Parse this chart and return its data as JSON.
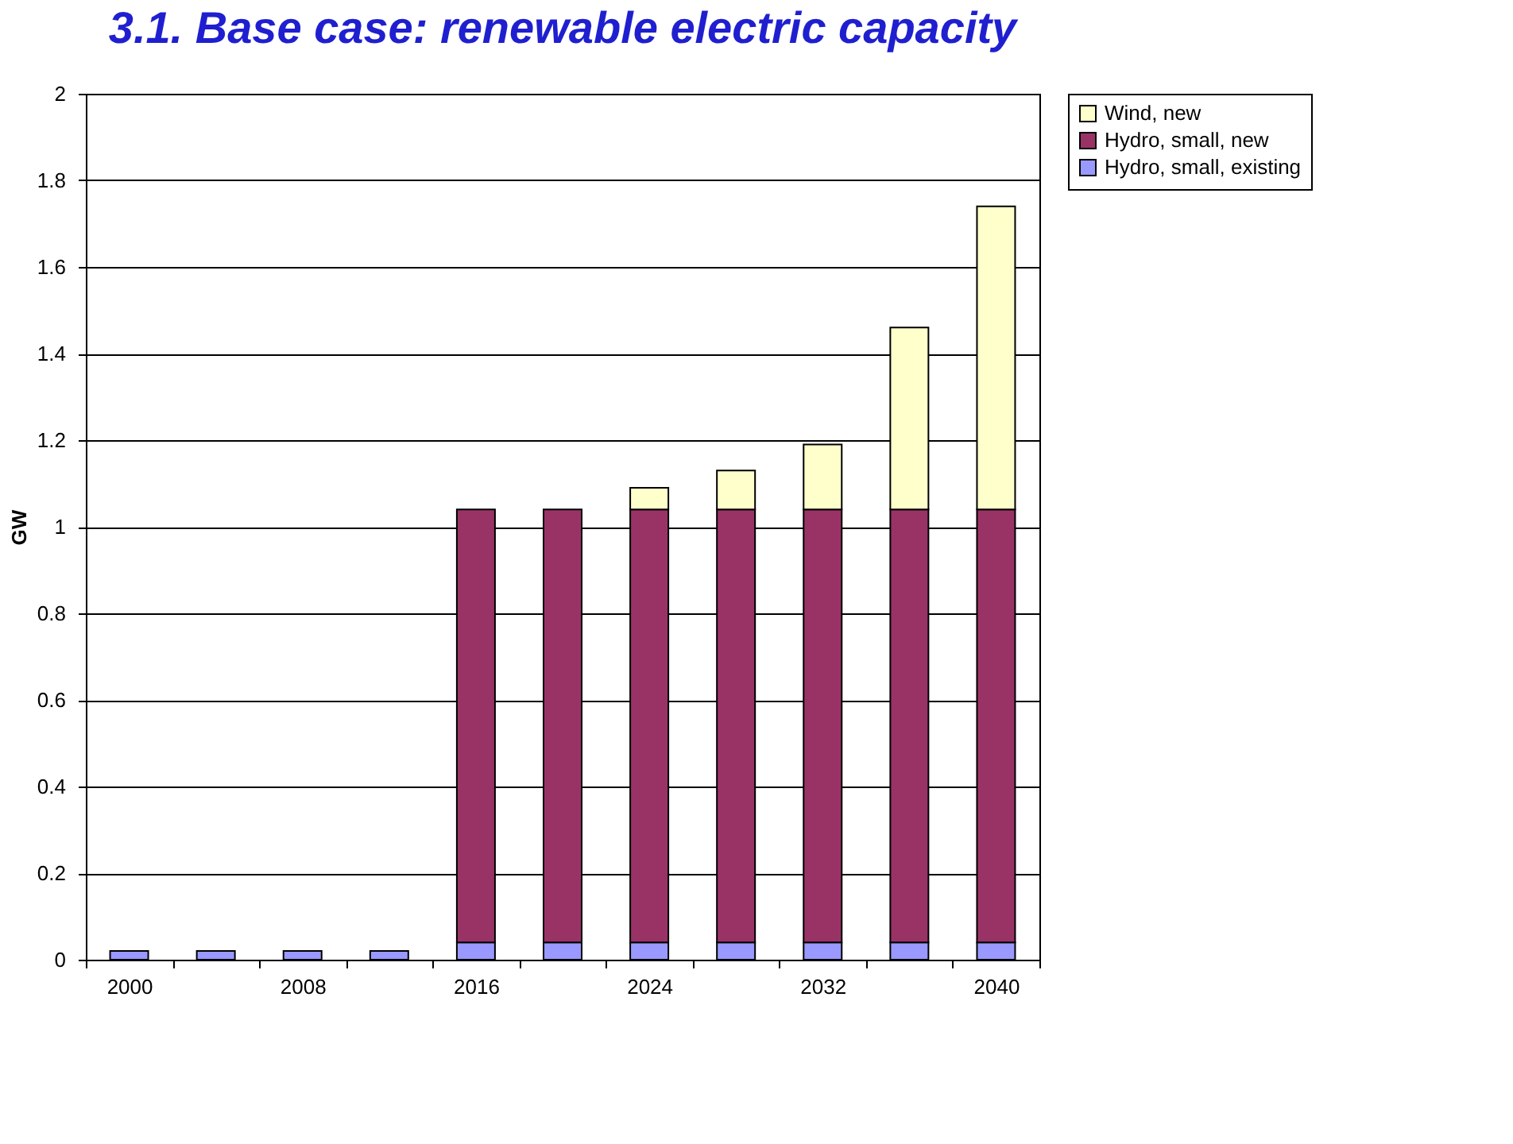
{
  "chart_data": {
    "type": "bar",
    "title": "3.1. Base case: renewable electric capacity",
    "ylabel": "GW",
    "categories": [
      "2000",
      null,
      "2008",
      null,
      "2016",
      null,
      "2024",
      null,
      "2032",
      null,
      "2040"
    ],
    "stacked": true,
    "series": [
      {
        "name": "Hydro, small, existing",
        "color": "#9999ff",
        "values": [
          0.02,
          0.02,
          0.02,
          0.02,
          0.04,
          0.04,
          0.04,
          0.04,
          0.04,
          0.04,
          0.04
        ]
      },
      {
        "name": "Hydro, small, new",
        "color": "#993366",
        "values": [
          null,
          null,
          null,
          null,
          1.0,
          1.0,
          1.0,
          1.0,
          1.0,
          1.0,
          1.0
        ]
      },
      {
        "name": "Wind, new",
        "color": "#ffffcc",
        "values": [
          null,
          null,
          null,
          null,
          null,
          null,
          0.05,
          0.09,
          0.15,
          0.42,
          0.7
        ]
      }
    ],
    "ylim": [
      0,
      2
    ],
    "yticks": [
      0,
      0.2,
      0.4,
      0.6,
      0.8,
      1,
      1.2,
      1.4,
      1.6,
      1.8,
      2
    ],
    "grid": "y",
    "legend": "right"
  }
}
